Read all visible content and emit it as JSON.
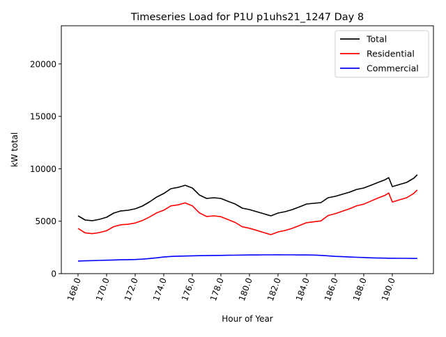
{
  "chart_data": {
    "type": "line",
    "title": "Timeseries Load for P1U p1uhs21_1247  Day 8",
    "xlabel": "Hour of Year",
    "ylabel": "kW total",
    "xlim": [
      166.83,
      192.88
    ],
    "ylim": [
      0,
      23640
    ],
    "xticks": [
      168,
      170,
      172,
      174,
      176,
      178,
      180,
      182,
      184,
      186,
      188,
      190
    ],
    "xtick_labels": [
      "168.0",
      "170.0",
      "172.0",
      "174.0",
      "176.0",
      "178.0",
      "180.0",
      "182.0",
      "184.0",
      "186.0",
      "188.0",
      "190.0"
    ],
    "yticks": [
      0,
      5000,
      10000,
      15000,
      20000
    ],
    "ytick_labels": [
      "0",
      "5000",
      "10000",
      "15000",
      "20000"
    ],
    "grid": false,
    "legend": "top-right",
    "x": [
      168,
      168.5,
      169,
      169.5,
      170,
      170.5,
      171,
      171.5,
      172,
      172.5,
      173,
      173.5,
      174,
      174.5,
      175,
      175.5,
      176,
      176.5,
      177,
      177.5,
      178,
      178.5,
      179,
      179.5,
      180,
      180.5,
      181,
      181.5,
      182,
      182.5,
      183,
      183.5,
      184,
      184.5,
      185,
      185.5,
      186,
      186.5,
      187,
      187.5,
      188,
      188.5,
      189,
      189.5,
      189.75,
      190,
      190.5,
      191,
      191.5,
      191.75
    ],
    "series": [
      {
        "name": "Total",
        "color": "#000000",
        "values": [
          5510,
          5110,
          5050,
          5180,
          5380,
          5780,
          5980,
          6040,
          6180,
          6440,
          6840,
          7300,
          7640,
          8100,
          8230,
          8430,
          8170,
          7500,
          7170,
          7240,
          7170,
          6900,
          6640,
          6240,
          6110,
          5910,
          5710,
          5510,
          5780,
          5910,
          6110,
          6370,
          6640,
          6710,
          6770,
          7240,
          7370,
          7570,
          7770,
          8030,
          8170,
          8430,
          8700,
          8960,
          9160,
          8300,
          8500,
          8700,
          9100,
          9430
        ]
      },
      {
        "name": "Residential",
        "color": "#ff0000",
        "values": [
          4310,
          3890,
          3810,
          3920,
          4100,
          4480,
          4660,
          4705,
          4830,
          5060,
          5400,
          5790,
          6050,
          6460,
          6560,
          6750,
          6470,
          5790,
          5450,
          5510,
          5430,
          5150,
          4880,
          4470,
          4330,
          4130,
          3920,
          3720,
          3980,
          4120,
          4320,
          4590,
          4860,
          4940,
          5030,
          5540,
          5720,
          5950,
          6180,
          6470,
          6630,
          6920,
          7210,
          7480,
          7690,
          6830,
          7040,
          7240,
          7650,
          7980
        ]
      },
      {
        "name": "Commercial",
        "color": "#0000ff",
        "values": [
          1200,
          1220,
          1240,
          1260,
          1280,
          1300,
          1320,
          1335,
          1350,
          1380,
          1440,
          1510,
          1590,
          1640,
          1670,
          1680,
          1700,
          1710,
          1720,
          1730,
          1740,
          1750,
          1760,
          1770,
          1780,
          1780,
          1790,
          1790,
          1800,
          1790,
          1790,
          1780,
          1780,
          1770,
          1740,
          1700,
          1650,
          1620,
          1590,
          1560,
          1540,
          1510,
          1490,
          1480,
          1470,
          1470,
          1460,
          1460,
          1450,
          1450
        ]
      }
    ]
  }
}
